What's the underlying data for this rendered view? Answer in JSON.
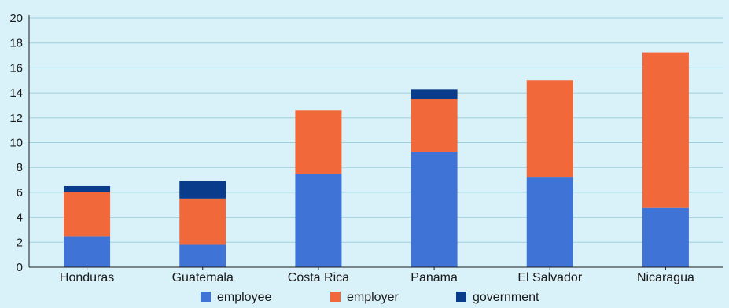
{
  "chart_data": {
    "type": "bar",
    "stacked": true,
    "categories": [
      "Honduras",
      "Guatemala",
      "Costa Rica",
      "Panama",
      "El Salvador",
      "Nicaragua"
    ],
    "series": [
      {
        "name": "employee",
        "color": "#3f74d6",
        "values": [
          2.5,
          1.8,
          7.5,
          9.25,
          7.25,
          4.75
        ]
      },
      {
        "name": "employer",
        "color": "#f1683a",
        "values": [
          3.5,
          3.7,
          5.1,
          4.25,
          7.75,
          12.5
        ]
      },
      {
        "name": "government",
        "color": "#0a3c8c",
        "values": [
          0.5,
          1.4,
          0,
          0.8,
          0,
          0
        ]
      }
    ],
    "yticks": [
      0,
      2,
      4,
      6,
      8,
      10,
      12,
      14,
      16,
      18,
      20
    ],
    "ylim": [
      0,
      20
    ],
    "grid": true,
    "legend_position": "bottom",
    "background": "#d9f1f8",
    "grid_color": "#9fd0dd"
  }
}
